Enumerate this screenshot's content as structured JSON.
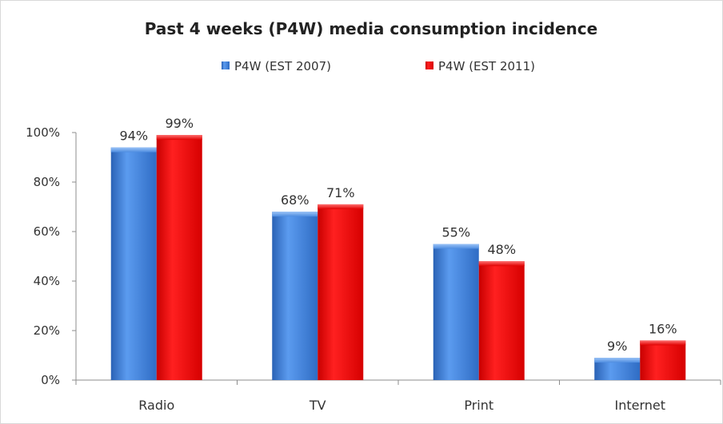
{
  "chart_data": {
    "type": "bar",
    "title": "Past  4 weeks (P4W) media consumption incidence",
    "categories": [
      "Radio",
      "TV",
      "Print",
      "Internet"
    ],
    "series": [
      {
        "name": "P4W (EST 2007)",
        "color": "#3d7fd9",
        "values": [
          94,
          68,
          55,
          9
        ],
        "labels": [
          "94%",
          "68%",
          "55%",
          "9%"
        ]
      },
      {
        "name": "P4W (EST 2011)",
        "color": "#ee1111",
        "values": [
          99,
          71,
          48,
          16
        ],
        "labels": [
          "99%",
          "71%",
          "48%",
          "16%"
        ]
      }
    ],
    "ylim": [
      0,
      100
    ],
    "yticks": [
      "0%",
      "20%",
      "40%",
      "60%",
      "80%",
      "100%"
    ],
    "ytick_values": [
      0,
      20,
      40,
      60,
      80,
      100
    ],
    "grid": false,
    "legend_position": "top"
  }
}
